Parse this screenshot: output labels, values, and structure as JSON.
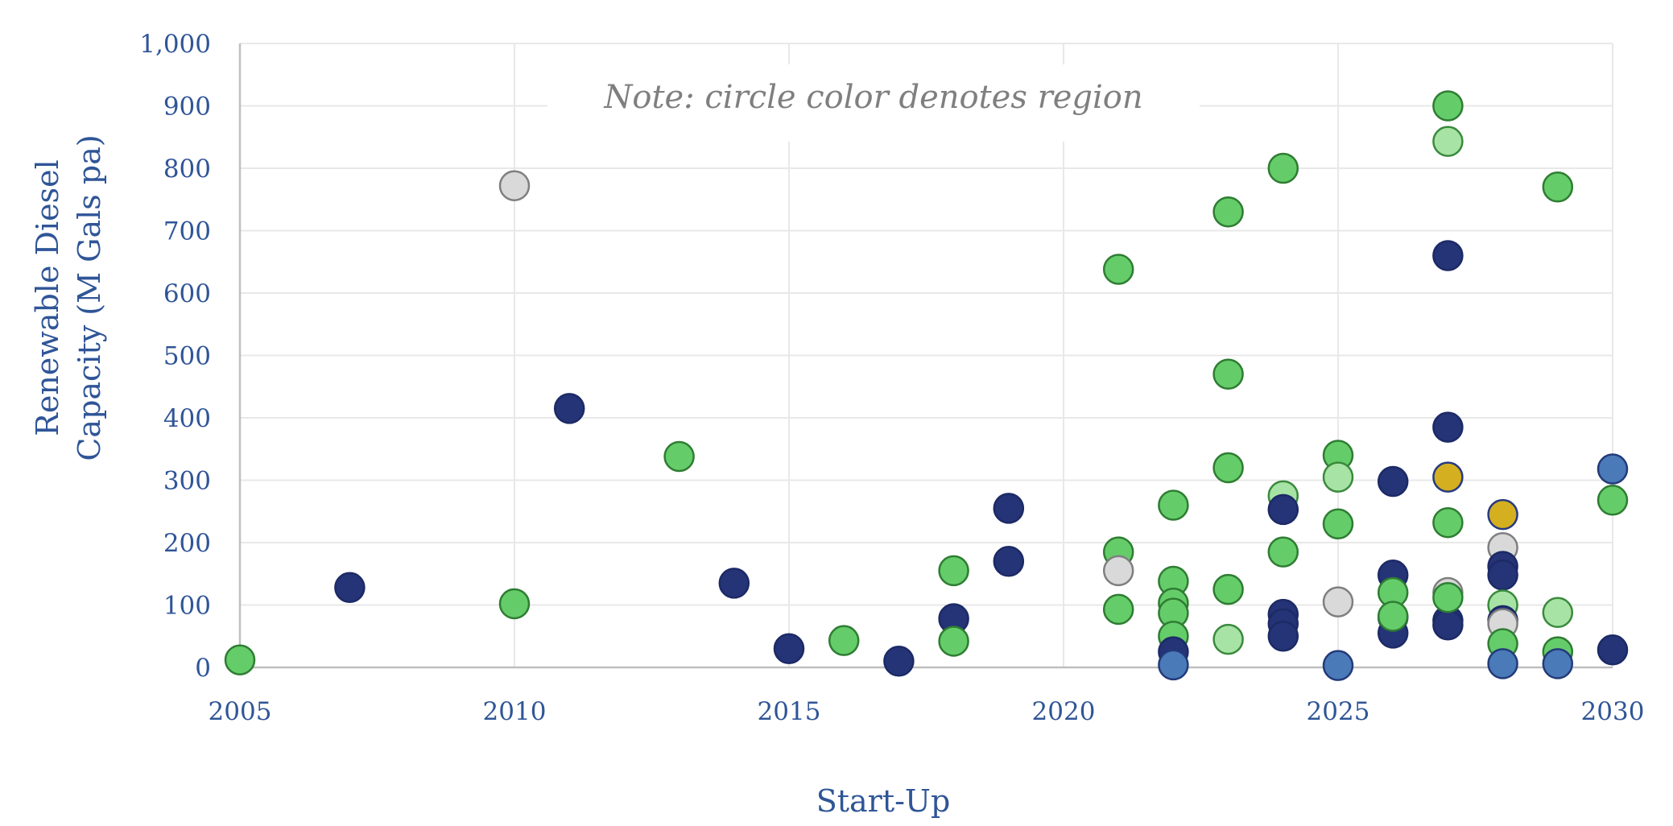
{
  "chart_data": {
    "type": "scatter",
    "title": "",
    "xlabel": "Start-Up",
    "ylabel_lines": [
      "Renewable Diesel",
      "Capacity (M Gals pa)"
    ],
    "annotation": "Note: circle color denotes region",
    "xlim": [
      2005,
      2030
    ],
    "ylim": [
      0,
      1000
    ],
    "x_ticks": [
      2005,
      2010,
      2015,
      2020,
      2025,
      2030
    ],
    "y_ticks": [
      0,
      100,
      200,
      300,
      400,
      500,
      600,
      700,
      800,
      900,
      1000
    ],
    "y_tick_labels": [
      "0",
      "100",
      "200",
      "300",
      "400",
      "500",
      "600",
      "700",
      "800",
      "900",
      "1,000"
    ],
    "grid": true,
    "legend": "none",
    "colors": {
      "axis_text": "#2f5597",
      "grid": "#e8e8e8",
      "axis_line": "#bfbfbf",
      "note_text": "#7f7f7f"
    },
    "point_styles": {
      "navy": {
        "fill": "#253377",
        "stroke": "#1c2a66"
      },
      "green": {
        "fill": "#65cc6a",
        "stroke": "#2e7d32"
      },
      "lightgreen": {
        "fill": "#a8e3a6",
        "stroke": "#3a8a3c"
      },
      "gray": {
        "fill": "#d9d9d9",
        "stroke": "#7f7f7f"
      },
      "steelblue": {
        "fill": "#4a7ab8",
        "stroke": "#233a7a"
      },
      "gold": {
        "fill": "#d4af1f",
        "stroke": "#263a80"
      }
    },
    "points": [
      {
        "x": 2005,
        "y": 12,
        "c": "green"
      },
      {
        "x": 2007,
        "y": 128,
        "c": "navy"
      },
      {
        "x": 2010,
        "y": 772,
        "c": "gray"
      },
      {
        "x": 2010,
        "y": 102,
        "c": "green"
      },
      {
        "x": 2011,
        "y": 415,
        "c": "navy"
      },
      {
        "x": 2013,
        "y": 338,
        "c": "green"
      },
      {
        "x": 2014,
        "y": 135,
        "c": "navy"
      },
      {
        "x": 2015,
        "y": 30,
        "c": "navy"
      },
      {
        "x": 2016,
        "y": 43,
        "c": "green"
      },
      {
        "x": 2017,
        "y": 10,
        "c": "navy"
      },
      {
        "x": 2018,
        "y": 155,
        "c": "green"
      },
      {
        "x": 2018,
        "y": 78,
        "c": "navy"
      },
      {
        "x": 2018,
        "y": 42,
        "c": "green"
      },
      {
        "x": 2019,
        "y": 255,
        "c": "navy"
      },
      {
        "x": 2019,
        "y": 170,
        "c": "navy"
      },
      {
        "x": 2021,
        "y": 638,
        "c": "green"
      },
      {
        "x": 2021,
        "y": 185,
        "c": "green"
      },
      {
        "x": 2021,
        "y": 155,
        "c": "gray"
      },
      {
        "x": 2021,
        "y": 93,
        "c": "green"
      },
      {
        "x": 2022,
        "y": 260,
        "c": "green"
      },
      {
        "x": 2022,
        "y": 138,
        "c": "green"
      },
      {
        "x": 2022,
        "y": 103,
        "c": "green"
      },
      {
        "x": 2022,
        "y": 87,
        "c": "green"
      },
      {
        "x": 2022,
        "y": 50,
        "c": "green"
      },
      {
        "x": 2022,
        "y": 25,
        "c": "navy"
      },
      {
        "x": 2022,
        "y": 4,
        "c": "steelblue"
      },
      {
        "x": 2023,
        "y": 730,
        "c": "green"
      },
      {
        "x": 2023,
        "y": 470,
        "c": "green"
      },
      {
        "x": 2023,
        "y": 320,
        "c": "green"
      },
      {
        "x": 2023,
        "y": 125,
        "c": "green"
      },
      {
        "x": 2023,
        "y": 45,
        "c": "lightgreen"
      },
      {
        "x": 2024,
        "y": 800,
        "c": "green"
      },
      {
        "x": 2024,
        "y": 275,
        "c": "lightgreen"
      },
      {
        "x": 2024,
        "y": 253,
        "c": "navy"
      },
      {
        "x": 2024,
        "y": 185,
        "c": "green"
      },
      {
        "x": 2024,
        "y": 85,
        "c": "navy"
      },
      {
        "x": 2024,
        "y": 70,
        "c": "navy"
      },
      {
        "x": 2024,
        "y": 50,
        "c": "navy"
      },
      {
        "x": 2025,
        "y": 340,
        "c": "green"
      },
      {
        "x": 2025,
        "y": 305,
        "c": "lightgreen"
      },
      {
        "x": 2025,
        "y": 230,
        "c": "green"
      },
      {
        "x": 2025,
        "y": 105,
        "c": "gray"
      },
      {
        "x": 2025,
        "y": 3,
        "c": "steelblue"
      },
      {
        "x": 2026,
        "y": 298,
        "c": "navy"
      },
      {
        "x": 2026,
        "y": 148,
        "c": "navy"
      },
      {
        "x": 2026,
        "y": 120,
        "c": "green"
      },
      {
        "x": 2026,
        "y": 80,
        "c": "navy"
      },
      {
        "x": 2026,
        "y": 55,
        "c": "navy"
      },
      {
        "x": 2026,
        "y": 82,
        "c": "green"
      },
      {
        "x": 2027,
        "y": 900,
        "c": "green"
      },
      {
        "x": 2027,
        "y": 843,
        "c": "lightgreen"
      },
      {
        "x": 2027,
        "y": 660,
        "c": "navy"
      },
      {
        "x": 2027,
        "y": 385,
        "c": "navy"
      },
      {
        "x": 2027,
        "y": 305,
        "c": "gold"
      },
      {
        "x": 2027,
        "y": 232,
        "c": "green"
      },
      {
        "x": 2027,
        "y": 120,
        "c": "gray"
      },
      {
        "x": 2027,
        "y": 75,
        "c": "navy"
      },
      {
        "x": 2027,
        "y": 68,
        "c": "navy"
      },
      {
        "x": 2027,
        "y": 112,
        "c": "green"
      },
      {
        "x": 2028,
        "y": 245,
        "c": "gold"
      },
      {
        "x": 2028,
        "y": 192,
        "c": "gray"
      },
      {
        "x": 2028,
        "y": 162,
        "c": "navy"
      },
      {
        "x": 2028,
        "y": 148,
        "c": "navy"
      },
      {
        "x": 2028,
        "y": 100,
        "c": "lightgreen"
      },
      {
        "x": 2028,
        "y": 75,
        "c": "navy"
      },
      {
        "x": 2028,
        "y": 70,
        "c": "gray"
      },
      {
        "x": 2028,
        "y": 38,
        "c": "green"
      },
      {
        "x": 2028,
        "y": 6,
        "c": "steelblue"
      },
      {
        "x": 2029,
        "y": 770,
        "c": "green"
      },
      {
        "x": 2029,
        "y": 88,
        "c": "lightgreen"
      },
      {
        "x": 2029,
        "y": 25,
        "c": "green"
      },
      {
        "x": 2029,
        "y": 6,
        "c": "steelblue"
      },
      {
        "x": 2030,
        "y": 318,
        "c": "steelblue"
      },
      {
        "x": 2030,
        "y": 268,
        "c": "green"
      },
      {
        "x": 2030,
        "y": 28,
        "c": "navy"
      }
    ]
  }
}
